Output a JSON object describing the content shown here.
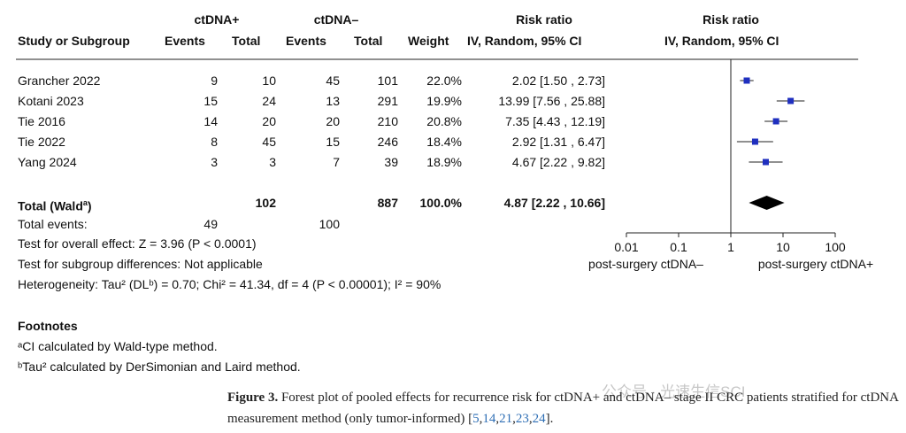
{
  "header": {
    "group1": "ctDNA+",
    "group2": "ctDNA–",
    "rr_title_table": "Risk ratio",
    "rr_title_plot": "Risk ratio",
    "study_col": "Study or Subgroup",
    "events": "Events",
    "total": "Total",
    "weight": "Weight",
    "method_table": "IV, Random, 95% CI",
    "method_plot": "IV, Random, 95% CI"
  },
  "studies": [
    {
      "name": "Grancher 2022",
      "e1": "9",
      "t1": "10",
      "e2": "45",
      "t2": "101",
      "weight": "22.0%",
      "ci": "2.02 [1.50 , 2.73]"
    },
    {
      "name": "Kotani 2023",
      "e1": "15",
      "t1": "24",
      "e2": "13",
      "t2": "291",
      "weight": "19.9%",
      "ci": "13.99 [7.56 , 25.88]"
    },
    {
      "name": "Tie 2016",
      "e1": "14",
      "t1": "20",
      "e2": "20",
      "t2": "210",
      "weight": "20.8%",
      "ci": "7.35 [4.43 , 12.19]"
    },
    {
      "name": "Tie 2022",
      "e1": "8",
      "t1": "45",
      "e2": "15",
      "t2": "246",
      "weight": "18.4%",
      "ci": "2.92 [1.31 , 6.47]"
    },
    {
      "name": "Yang 2024",
      "e1": "3",
      "t1": "3",
      "e2": "7",
      "t2": "39",
      "weight": "18.9%",
      "ci": "4.67 [2.22 , 9.82]"
    }
  ],
  "total": {
    "label_main": "Total (Wald",
    "label_sup": "a",
    "label_end": ")",
    "t1": "102",
    "t2": "887",
    "weight": "100.0%",
    "ci": "4.87 [2.22 , 10.66]"
  },
  "total_events": {
    "label": "Total events:",
    "e1": "49",
    "e2": "100"
  },
  "tests": {
    "overall": "Test for overall effect: Z = 3.96 (P < 0.0001)",
    "subgroup": "Test for subgroup differences: Not applicable",
    "heterogeneity": "Heterogeneity: Tau² (DLᵇ) = 0.70; Chi² = 41.34, df = 4 (P < 0.00001); I² = 90%"
  },
  "footnotes": {
    "title": "Footnotes",
    "a": "ᵃCI calculated by Wald-type method.",
    "b": "ᵇTau² calculated by DerSimonian and Laird method."
  },
  "caption": {
    "fig": "Figure 3.",
    "text": " Forest plot of pooled effects for recurrence risk for ctDNA+ and ctDNA– stage II CRC patients stratified for ctDNA measurement method (only tumor-informed) [",
    "refs": [
      "5",
      "14",
      "21",
      "23",
      "24"
    ],
    "end": "]."
  },
  "watermark": "公众号 · 光速生信SCI",
  "chart_data": {
    "type": "forest",
    "x_scale": "log",
    "xlim": [
      0.01,
      100
    ],
    "ticks": [
      0.01,
      0.1,
      1,
      10,
      100
    ],
    "tick_labels": [
      "0.01",
      "0.1",
      "1",
      "10",
      "100"
    ],
    "label_left": "post-surgery ctDNA–",
    "label_right": "post-surgery ctDNA+",
    "null_value": 1,
    "square_color": "#1f2fbf",
    "diamond_color": "#000000",
    "points": [
      {
        "study": "Grancher 2022",
        "rr": 2.02,
        "lo": 1.5,
        "hi": 2.73
      },
      {
        "study": "Kotani 2023",
        "rr": 13.99,
        "lo": 7.56,
        "hi": 25.88
      },
      {
        "study": "Tie 2016",
        "rr": 7.35,
        "lo": 4.43,
        "hi": 12.19
      },
      {
        "study": "Tie 2022",
        "rr": 2.92,
        "lo": 1.31,
        "hi": 6.47
      },
      {
        "study": "Yang 2024",
        "rr": 4.67,
        "lo": 2.22,
        "hi": 9.82
      }
    ],
    "pooled": {
      "rr": 4.87,
      "lo": 2.22,
      "hi": 10.66
    }
  }
}
